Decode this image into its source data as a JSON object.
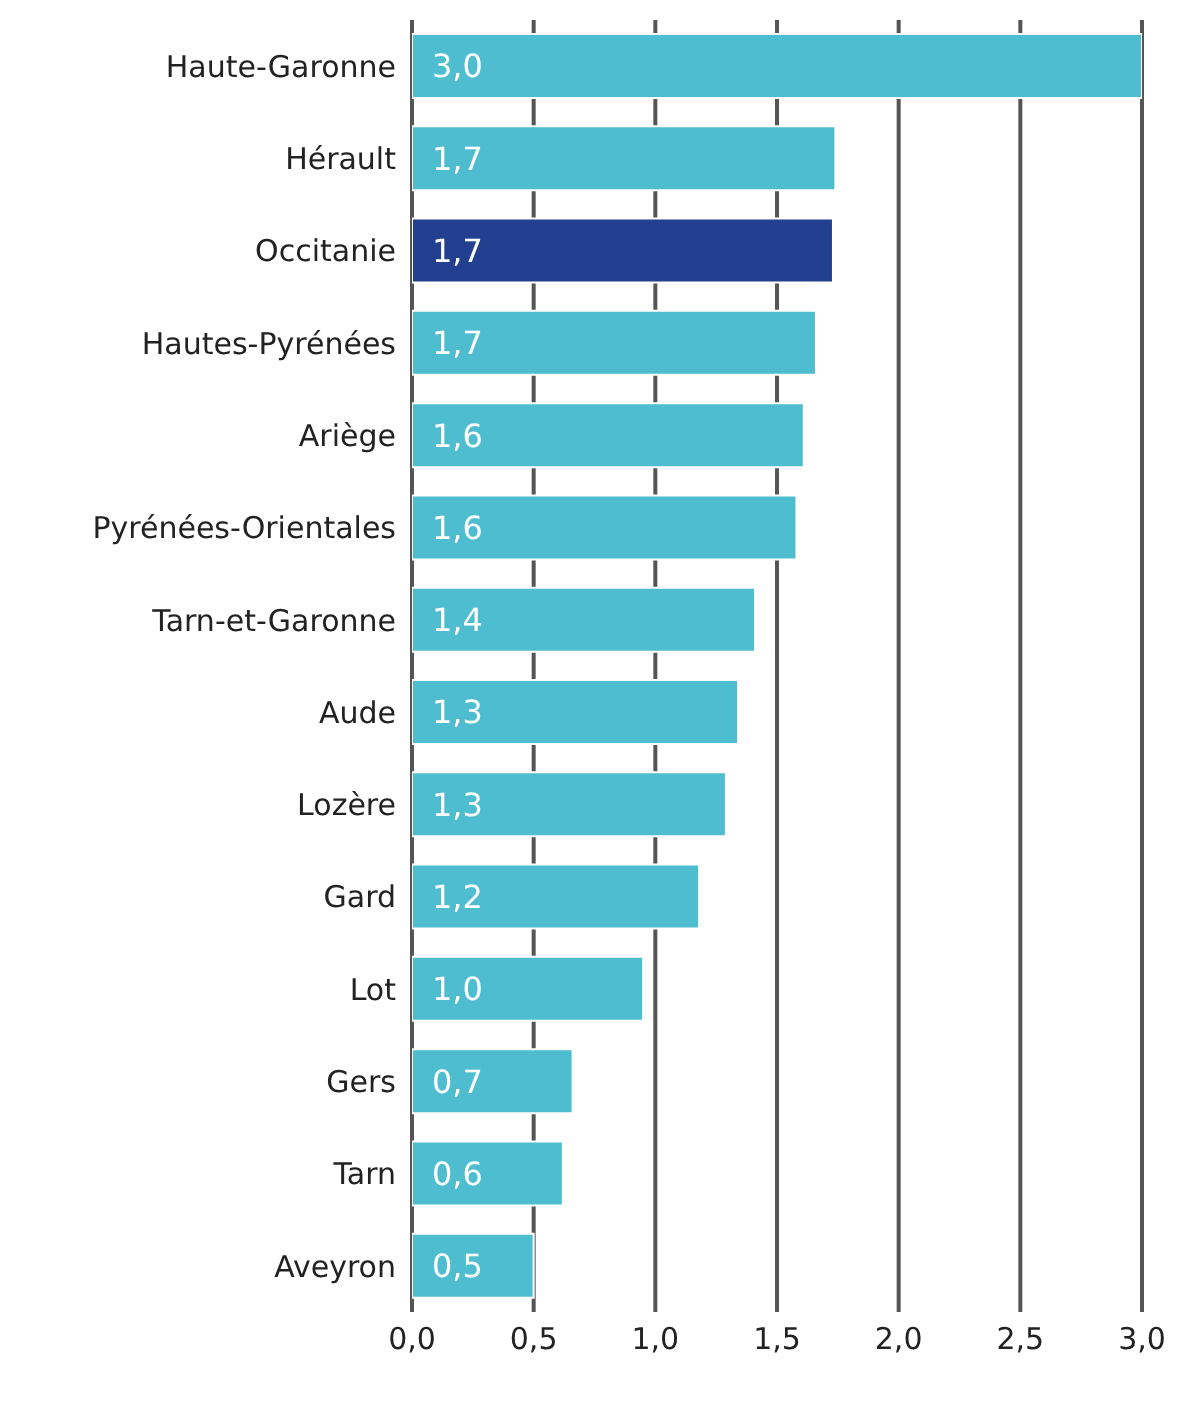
{
  "chart_data": {
    "type": "bar",
    "orientation": "horizontal",
    "categories": [
      "Haute-Garonne",
      "Hérault",
      "Occitanie",
      "Hautes-Pyrénées",
      "Ariège",
      "Pyrénées-Orientales",
      "Tarn-et-Garonne",
      "Aude",
      "Lozère",
      "Gard",
      "Lot",
      "Gers",
      "Tarn",
      "Aveyron"
    ],
    "values": [
      3.0,
      1.74,
      1.73,
      1.66,
      1.61,
      1.58,
      1.41,
      1.34,
      1.29,
      1.18,
      0.95,
      0.66,
      0.62,
      0.5
    ],
    "colors": [
      "#4fbdd0",
      "#4fbdd0",
      "#233f8f",
      "#4fbdd0",
      "#4fbdd0",
      "#4fbdd0",
      "#4fbdd0",
      "#4fbdd0",
      "#4fbdd0",
      "#4fbdd0",
      "#4fbdd0",
      "#4fbdd0",
      "#4fbdd0",
      "#4fbdd0"
    ],
    "value_labels": [
      "3,0",
      "1,7",
      "1,7",
      "1,7",
      "1,6",
      "1,6",
      "1,4",
      "1,3",
      "1,3",
      "1,2",
      "1,0",
      "0,7",
      "0,6",
      "0,5"
    ],
    "xlim": [
      0,
      3
    ],
    "xticks": [
      {
        "value": 0,
        "label": "0,0"
      },
      {
        "value": 0.5,
        "label": "0,5"
      },
      {
        "value": 1,
        "label": "1,0"
      },
      {
        "value": 1.5,
        "label": "1,5"
      },
      {
        "value": 2,
        "label": "2,0"
      },
      {
        "value": 2.5,
        "label": "2,5"
      },
      {
        "value": 3,
        "label": "3,0"
      }
    ],
    "grid": "x"
  }
}
